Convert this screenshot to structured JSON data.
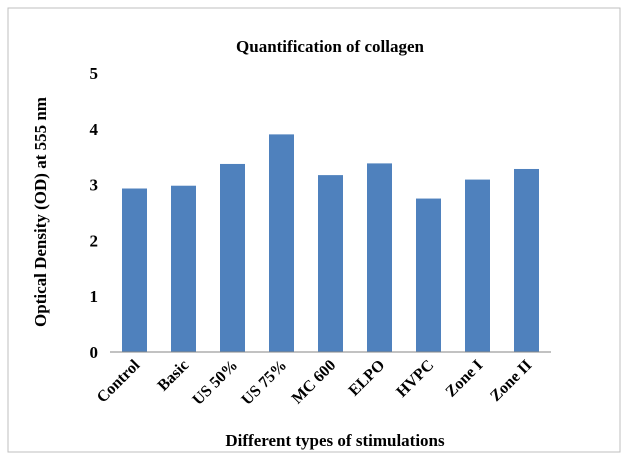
{
  "chart_data": {
    "type": "bar",
    "title": "Quantification of collagen",
    "x_label": "Different types of stimulations",
    "y_label": "Optical Density (OD) at 555 nm",
    "categories": [
      "Control",
      "Basic",
      "US 50%",
      "US 75%",
      "MC 600",
      "ELPO",
      "HVPC",
      "Zone I",
      "Zone II"
    ],
    "values": [
      2.93,
      2.98,
      3.37,
      3.9,
      3.17,
      3.38,
      2.75,
      3.09,
      3.28
    ],
    "color": "#4f81bd",
    "ylim": [
      0,
      5
    ],
    "yticks": [
      0,
      1,
      2,
      3,
      4,
      5
    ],
    "grid": false
  }
}
